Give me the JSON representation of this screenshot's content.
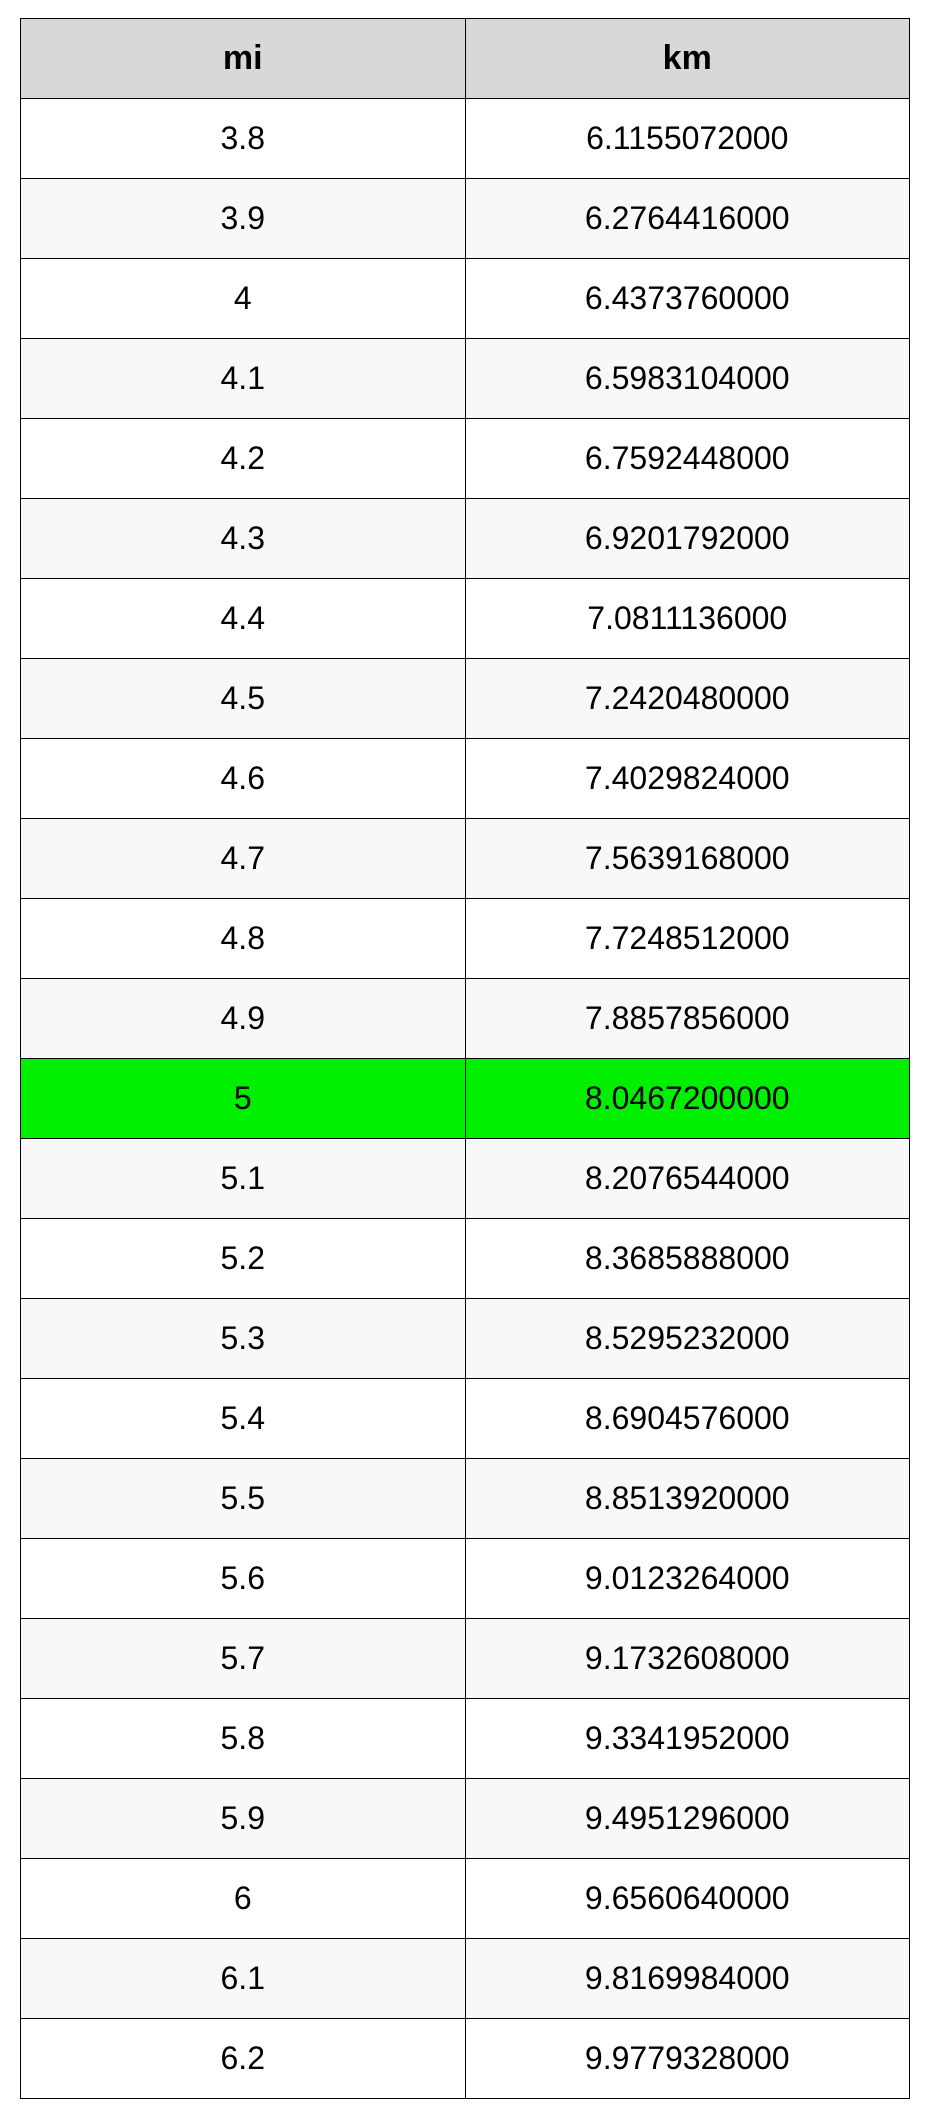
{
  "table": {
    "type": "table",
    "columns": [
      "mi",
      "km"
    ],
    "column_widths": [
      "50%",
      "50%"
    ],
    "alignment": [
      "center",
      "center"
    ],
    "header_bg": "#d8d8d8",
    "header_fontsize": 34,
    "header_fontweight": "bold",
    "cell_fontsize": 32,
    "border_color": "#000000",
    "row_bg_odd": "#ffffff",
    "row_bg_even": "#f8f8f8",
    "highlight_bg": "#00ee00",
    "highlight_row_index": 12,
    "rows": [
      [
        "3.8",
        "6.1155072000"
      ],
      [
        "3.9",
        "6.2764416000"
      ],
      [
        "4",
        "6.4373760000"
      ],
      [
        "4.1",
        "6.5983104000"
      ],
      [
        "4.2",
        "6.7592448000"
      ],
      [
        "4.3",
        "6.9201792000"
      ],
      [
        "4.4",
        "7.0811136000"
      ],
      [
        "4.5",
        "7.2420480000"
      ],
      [
        "4.6",
        "7.4029824000"
      ],
      [
        "4.7",
        "7.5639168000"
      ],
      [
        "4.8",
        "7.7248512000"
      ],
      [
        "4.9",
        "7.8857856000"
      ],
      [
        "5",
        "8.0467200000"
      ],
      [
        "5.1",
        "8.2076544000"
      ],
      [
        "5.2",
        "8.3685888000"
      ],
      [
        "5.3",
        "8.5295232000"
      ],
      [
        "5.4",
        "8.6904576000"
      ],
      [
        "5.5",
        "8.8513920000"
      ],
      [
        "5.6",
        "9.0123264000"
      ],
      [
        "5.7",
        "9.1732608000"
      ],
      [
        "5.8",
        "9.3341952000"
      ],
      [
        "5.9",
        "9.4951296000"
      ],
      [
        "6",
        "9.6560640000"
      ],
      [
        "6.1",
        "9.8169984000"
      ],
      [
        "6.2",
        "9.9779328000"
      ]
    ]
  }
}
